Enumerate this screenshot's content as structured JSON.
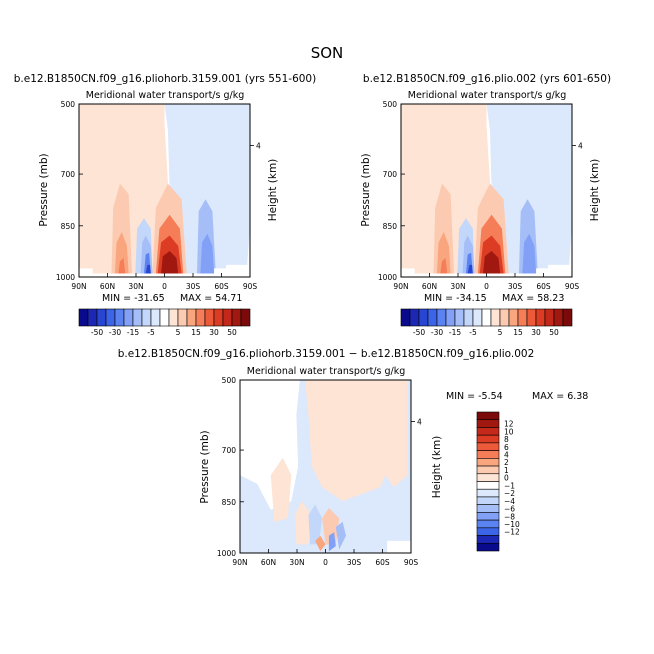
{
  "figure": {
    "title": "SON"
  },
  "chart_data": [
    {
      "type": "heatmap",
      "title": "b.e12.B1850CN.f09_g16.pliohorb.3159.001 (yrs 551-600)",
      "subtitle": "Meridional water transport/s g/kg",
      "xlabel": "",
      "ylabel": "Pressure (mb)",
      "ylabel_right": "Height (km)",
      "x_ticks": [
        "90N",
        "60N",
        "30N",
        "0",
        "30S",
        "60S",
        "90S"
      ],
      "y_ticks": [
        "500",
        "700",
        "850",
        "1000"
      ],
      "y_right_ticks": [
        "4"
      ],
      "min_label": "MIN = -31.65",
      "max_label": "MAX = 54.71",
      "min_value": -31.65,
      "max_value": 54.71,
      "colorbar": {
        "orientation": "horizontal",
        "labels": [
          "-50",
          "-30",
          "-15",
          "-5",
          "5",
          "15",
          "30",
          "50"
        ],
        "colors": [
          "#0a0a8c",
          "#1c28b4",
          "#2846d2",
          "#3c64e6",
          "#5a82f0",
          "#82a0f5",
          "#a5bef8",
          "#c3d7fa",
          "#dce8fc",
          "#ffffff",
          "#fde4d4",
          "#fccab0",
          "#f9a57e",
          "#f57d58",
          "#ec5a3a",
          "#dc3c23",
          "#c3281a",
          "#a01810",
          "#7d0a0a"
        ]
      }
    },
    {
      "type": "heatmap",
      "title": "b.e12.B1850CN.f09_g16.plio.002 (yrs 601-650)",
      "subtitle": "Meridional water transport/s g/kg",
      "xlabel": "",
      "ylabel": "Pressure (mb)",
      "ylabel_right": "Height (km)",
      "x_ticks": [
        "90N",
        "60N",
        "30N",
        "0",
        "30S",
        "60S",
        "90S"
      ],
      "y_ticks": [
        "500",
        "700",
        "850",
        "1000"
      ],
      "y_right_ticks": [
        "4"
      ],
      "min_label": "MIN = -34.15",
      "max_label": "MAX = 58.23",
      "min_value": -34.15,
      "max_value": 58.23,
      "colorbar": {
        "orientation": "horizontal",
        "labels": [
          "-50",
          "-30",
          "-15",
          "-5",
          "5",
          "15",
          "30",
          "50"
        ],
        "colors": [
          "#0a0a8c",
          "#1c28b4",
          "#2846d2",
          "#3c64e6",
          "#5a82f0",
          "#82a0f5",
          "#a5bef8",
          "#c3d7fa",
          "#dce8fc",
          "#ffffff",
          "#fde4d4",
          "#fccab0",
          "#f9a57e",
          "#f57d58",
          "#ec5a3a",
          "#dc3c23",
          "#c3281a",
          "#a01810",
          "#7d0a0a"
        ]
      }
    },
    {
      "type": "heatmap",
      "title": "b.e12.B1850CN.f09_g16.pliohorb.3159.001 − b.e12.B1850CN.f09_g16.plio.002",
      "subtitle": "Meridional water transport/s g/kg",
      "xlabel": "",
      "ylabel": "Pressure (mb)",
      "ylabel_right": "Height (km)",
      "x_ticks": [
        "90N",
        "60N",
        "30N",
        "0",
        "30S",
        "60S",
        "90S"
      ],
      "y_ticks": [
        "500",
        "700",
        "850",
        "1000"
      ],
      "y_right_ticks": [
        "4"
      ],
      "min_label": "MIN = -5.54",
      "max_label": "MAX = 6.38",
      "min_value": -5.54,
      "max_value": 6.38,
      "colorbar": {
        "orientation": "vertical",
        "labels": [
          "12",
          "10",
          "8",
          "6",
          "4",
          "2",
          "1",
          "0",
          "−1",
          "−2",
          "−4",
          "−6",
          "−8",
          "−10",
          "−12"
        ],
        "colors": [
          "#7d0a0a",
          "#a01810",
          "#c3281a",
          "#dc3c23",
          "#ec5a3a",
          "#f57d58",
          "#f9a57e",
          "#fccab0",
          "#fde4d4",
          "#ffffff",
          "#dce8fc",
          "#c3d7fa",
          "#a5bef8",
          "#82a0f5",
          "#5a82f0",
          "#3c64e6",
          "#1c28b4",
          "#0a0a8c"
        ]
      }
    }
  ]
}
